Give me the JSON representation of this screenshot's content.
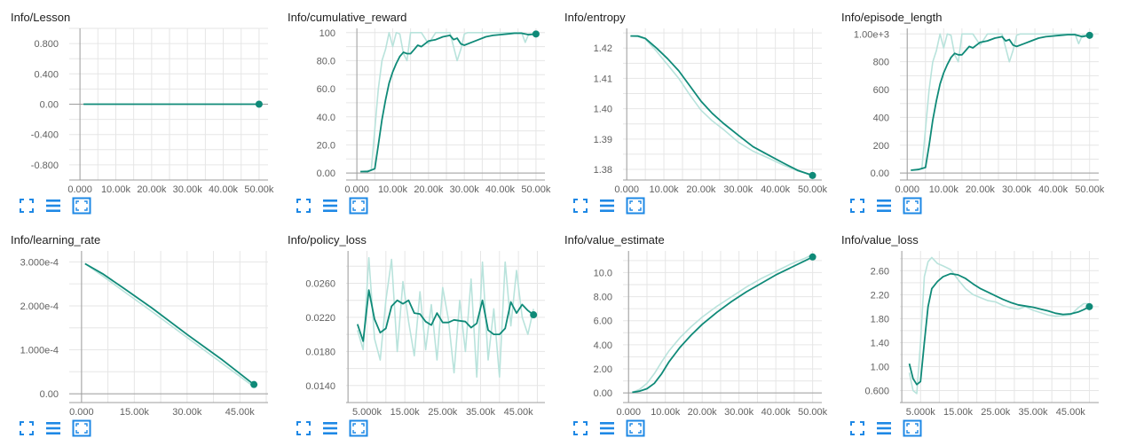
{
  "colors": {
    "series": "#0f8a78",
    "raw": "#b9e3dc",
    "grid": "#e6e6e6",
    "axis": "#9e9e9e",
    "icon": "#1e88e5"
  },
  "icons": [
    "fit-domain-icon",
    "toggle-log-scale-icon",
    "expand-chart-icon"
  ],
  "chart_data": [
    {
      "type": "line",
      "title": "Info/Lesson",
      "xlim": [
        -3000,
        52500
      ],
      "ylim": [
        -1.0,
        1.0
      ],
      "xticks": [
        0,
        10000,
        20000,
        30000,
        40000,
        50000
      ],
      "xtick_labels": [
        "0.000",
        "10.00k",
        "20.00k",
        "30.00k",
        "40.00k",
        "50.00k"
      ],
      "yticks": [
        0.8,
        0.4,
        0.0,
        -0.4,
        -0.8
      ],
      "ytick_labels": [
        "0.800",
        "0.400",
        "0.00",
        "-0.400",
        "-0.800"
      ],
      "x": [
        1000,
        10000,
        20000,
        30000,
        40000,
        50000
      ],
      "y": [
        0,
        0,
        0,
        0,
        0,
        0
      ],
      "raw": []
    },
    {
      "type": "line",
      "title": "Info/cumulative_reward",
      "xlim": [
        -3000,
        52500
      ],
      "ylim": [
        -5,
        103
      ],
      "xticks": [
        0,
        10000,
        20000,
        30000,
        40000,
        50000
      ],
      "xtick_labels": [
        "0.000",
        "10.00k",
        "20.00k",
        "30.00k",
        "40.00k",
        "50.00k"
      ],
      "yticks": [
        100,
        80,
        60,
        40,
        20,
        0
      ],
      "ytick_labels": [
        "100",
        "80.0",
        "60.0",
        "40.0",
        "20.0",
        "0.00"
      ],
      "x": [
        1000,
        3000,
        5000,
        6000,
        7000,
        8000,
        9000,
        10000,
        11000,
        12000,
        13000,
        14000,
        15000,
        16000,
        17000,
        18000,
        19000,
        20000,
        22000,
        24000,
        26000,
        27000,
        28000,
        29000,
        30000,
        32000,
        34000,
        36000,
        38000,
        40000,
        42000,
        44000,
        46000,
        48000,
        50000
      ],
      "y": [
        1,
        1,
        3,
        20,
        38,
        52,
        64,
        72,
        78,
        83,
        86,
        85,
        85,
        88,
        91,
        90,
        92,
        94,
        95,
        97,
        98,
        95,
        96,
        92,
        91,
        93,
        95,
        97,
        98,
        98.5,
        99,
        99.5,
        99.5,
        98.5,
        99
      ],
      "raw_x": [
        1000,
        4000,
        6000,
        7000,
        8000,
        9000,
        10000,
        11000,
        12000,
        13000,
        14000,
        15000,
        16000,
        18000,
        20000,
        22000,
        24000,
        26000,
        28000,
        29000,
        30000,
        31000,
        34000,
        38000,
        42000,
        46000,
        47000,
        48000,
        50000
      ],
      "raw_y": [
        1,
        2,
        60,
        80,
        88,
        100,
        90,
        100,
        99,
        85,
        80,
        100,
        100,
        100,
        92,
        100,
        100,
        100,
        80,
        88,
        99,
        100,
        100,
        100,
        100,
        100,
        93,
        99,
        99
      ]
    },
    {
      "type": "line",
      "title": "Info/entropy",
      "xlim": [
        -1000,
        52500
      ],
      "ylim": [
        1.3765,
        1.4265
      ],
      "xticks": [
        0,
        10000,
        20000,
        30000,
        40000,
        50000
      ],
      "xtick_labels": [
        "0.000",
        "10.00k",
        "20.00k",
        "30.00k",
        "40.00k",
        "50.00k"
      ],
      "yticks": [
        1.42,
        1.41,
        1.4,
        1.39,
        1.38
      ],
      "ytick_labels": [
        "1.42",
        "1.41",
        "1.40",
        "1.39",
        "1.38"
      ],
      "x": [
        1000,
        3000,
        5000,
        8000,
        11000,
        14000,
        17000,
        20000,
        23000,
        26000,
        30000,
        34000,
        38000,
        42000,
        46000,
        50000
      ],
      "y": [
        1.424,
        1.424,
        1.4232,
        1.42,
        1.4165,
        1.4125,
        1.4075,
        1.4025,
        1.3985,
        1.3952,
        1.3913,
        1.3875,
        1.3848,
        1.3822,
        1.3797,
        1.378
      ],
      "raw_x": [
        1000,
        3000,
        5000,
        8000,
        11000,
        14000,
        17000,
        20000,
        23000,
        26000,
        30000,
        34000,
        38000,
        42000,
        46000,
        50000
      ],
      "raw_y": [
        1.424,
        1.4238,
        1.423,
        1.419,
        1.4145,
        1.41,
        1.4045,
        1.3995,
        1.396,
        1.3932,
        1.389,
        1.386,
        1.3838,
        1.3815,
        1.3795,
        1.3782
      ]
    },
    {
      "type": "line",
      "title": "Info/episode_length",
      "xlim": [
        -2000,
        52500
      ],
      "ylim": [
        -50,
        1040
      ],
      "xticks": [
        0,
        10000,
        20000,
        30000,
        40000,
        50000
      ],
      "xtick_labels": [
        "0.000",
        "10.00k",
        "20.00k",
        "30.00k",
        "40.00k",
        "50.00k"
      ],
      "yticks": [
        1000,
        800,
        600,
        400,
        200,
        0
      ],
      "ytick_labels": [
        "1.00e+3",
        "800",
        "600",
        "400",
        "200",
        "0.00"
      ],
      "x": [
        1000,
        3000,
        5000,
        6000,
        7000,
        8000,
        9000,
        10000,
        11000,
        12000,
        13000,
        14000,
        15000,
        16000,
        17000,
        18000,
        19000,
        20000,
        22000,
        24000,
        26000,
        27000,
        28000,
        29000,
        30000,
        32000,
        34000,
        36000,
        38000,
        40000,
        42000,
        44000,
        46000,
        48000,
        50000
      ],
      "y": [
        20,
        25,
        40,
        200,
        380,
        520,
        640,
        720,
        780,
        830,
        860,
        850,
        850,
        880,
        910,
        900,
        920,
        940,
        950,
        970,
        980,
        950,
        960,
        920,
        910,
        930,
        950,
        970,
        980,
        985,
        990,
        995,
        995,
        980,
        990
      ],
      "raw_x": [
        1000,
        4000,
        6000,
        7000,
        8000,
        9000,
        10000,
        11000,
        12000,
        13000,
        14000,
        15000,
        16000,
        18000,
        20000,
        22000,
        24000,
        26000,
        28000,
        29000,
        30000,
        31000,
        34000,
        38000,
        42000,
        46000,
        47000,
        48000,
        50000
      ],
      "raw_y": [
        20,
        30,
        600,
        800,
        880,
        1000,
        900,
        1000,
        990,
        850,
        800,
        1000,
        1000,
        1000,
        920,
        1000,
        1000,
        1000,
        800,
        880,
        990,
        1000,
        1000,
        1000,
        1000,
        1000,
        930,
        990,
        990
      ]
    },
    {
      "type": "line",
      "title": "Info/learning_rate",
      "xlim": [
        -3500,
        53000
      ],
      "ylim": [
        -2e-05,
        0.000325
      ],
      "xticks": [
        0,
        15000,
        30000,
        45000
      ],
      "xtick_labels": [
        "0.000",
        "15.00k",
        "30.00k",
        "45.00k"
      ],
      "yticks": [
        0.0003,
        0.0002,
        0.0001,
        0
      ],
      "ytick_labels": [
        "3.000e-4",
        "2.000e-4",
        "1.000e-4",
        "0.00"
      ],
      "x": [
        1000,
        6000,
        12000,
        20000,
        30000,
        40000,
        49000
      ],
      "y": [
        0.000296,
        0.000273,
        0.00024,
        0.000195,
        0.000135,
        7.7e-05,
        2.1e-05
      ],
      "raw_x": [
        1000,
        6000,
        12000,
        20000,
        30000,
        40000,
        49000
      ],
      "raw_y": [
        0.000296,
        0.000268,
        0.000233,
        0.000187,
        0.000128,
        6.9e-05,
        1.6e-05
      ]
    },
    {
      "type": "line",
      "title": "Info/policy_loss",
      "xlim": [
        -500,
        52000
      ],
      "ylim": [
        0.012,
        0.0298
      ],
      "xticks": [
        5000,
        15000,
        25000,
        35000,
        45000
      ],
      "xtick_labels": [
        "5.000k",
        "15.00k",
        "25.00k",
        "35.00k",
        "45.00k"
      ],
      "yticks": [
        0.026,
        0.022,
        0.018,
        0.014
      ],
      "ytick_labels": [
        "0.0260",
        "0.0220",
        "0.0180",
        "0.0140"
      ],
      "x": [
        2500,
        4000,
        5500,
        7000,
        8500,
        10000,
        11500,
        13000,
        14500,
        16000,
        17500,
        19000,
        20500,
        22000,
        23500,
        25000,
        26500,
        28000,
        29500,
        31000,
        32500,
        34000,
        35500,
        37000,
        38500,
        40000,
        41500,
        43000,
        44500,
        46000,
        47500,
        49000
      ],
      "y": [
        0.0212,
        0.0192,
        0.0252,
        0.0218,
        0.0202,
        0.0207,
        0.0233,
        0.024,
        0.0236,
        0.024,
        0.0225,
        0.0224,
        0.0215,
        0.0211,
        0.0225,
        0.0214,
        0.0214,
        0.0217,
        0.0216,
        0.0215,
        0.0208,
        0.0213,
        0.024,
        0.0205,
        0.02,
        0.02,
        0.0207,
        0.0238,
        0.0225,
        0.0235,
        0.0228,
        0.0223
      ],
      "raw_x": [
        2500,
        4000,
        5500,
        7000,
        8500,
        10000,
        11500,
        13000,
        14500,
        16000,
        17500,
        19000,
        20500,
        22000,
        23500,
        25000,
        26500,
        28000,
        29500,
        31000,
        32500,
        34000,
        35500,
        37000,
        38500,
        40000,
        41500,
        43000,
        44500,
        46000,
        47500,
        49000
      ],
      "raw_y": [
        0.0205,
        0.0182,
        0.029,
        0.0195,
        0.017,
        0.024,
        0.0288,
        0.018,
        0.0262,
        0.0215,
        0.0175,
        0.025,
        0.0182,
        0.0235,
        0.017,
        0.0255,
        0.0218,
        0.0155,
        0.024,
        0.018,
        0.0265,
        0.015,
        0.0285,
        0.017,
        0.023,
        0.015,
        0.0285,
        0.021,
        0.0275,
        0.022,
        0.02,
        0.023
      ]
    },
    {
      "type": "line",
      "title": "Info/value_estimate",
      "xlim": [
        -1500,
        52500
      ],
      "ylim": [
        -0.8,
        11.8
      ],
      "xticks": [
        0,
        10000,
        20000,
        30000,
        40000,
        50000
      ],
      "xtick_labels": [
        "0.000",
        "10.00k",
        "20.00k",
        "30.00k",
        "40.00k",
        "50.00k"
      ],
      "yticks": [
        10,
        8,
        6,
        4,
        2,
        0
      ],
      "ytick_labels": [
        "10.0",
        "8.00",
        "6.00",
        "4.00",
        "2.00",
        "0.00"
      ],
      "x": [
        1000,
        3000,
        5000,
        7000,
        9000,
        11000,
        14000,
        17000,
        20000,
        24000,
        28000,
        32000,
        36000,
        40000,
        44000,
        48000,
        50000
      ],
      "y": [
        0.05,
        0.15,
        0.35,
        0.8,
        1.6,
        2.6,
        3.8,
        4.8,
        5.7,
        6.7,
        7.6,
        8.4,
        9.1,
        9.8,
        10.4,
        11.0,
        11.3
      ],
      "raw_x": [
        1000,
        3000,
        5000,
        7000,
        9000,
        11000,
        14000,
        17000,
        20000,
        24000,
        28000,
        32000,
        36000,
        40000,
        44000,
        48000,
        50000
      ],
      "raw_y": [
        0.05,
        0.3,
        0.8,
        1.6,
        2.6,
        3.5,
        4.6,
        5.5,
        6.3,
        7.2,
        8.0,
        8.8,
        9.5,
        10.1,
        10.7,
        11.2,
        11.5
      ]
    },
    {
      "type": "line",
      "title": "Info/value_loss",
      "xlim": [
        -500,
        52500
      ],
      "ylim": [
        0.4,
        2.93
      ],
      "xticks": [
        5000,
        15000,
        25000,
        35000,
        45000
      ],
      "xtick_labels": [
        "5.000k",
        "15.00k",
        "25.00k",
        "35.00k",
        "45.00k"
      ],
      "yticks": [
        2.6,
        2.2,
        1.8,
        1.4,
        1.0,
        0.6
      ],
      "ytick_labels": [
        "2.60",
        "2.20",
        "1.80",
        "1.40",
        "1.00",
        "0.600"
      ],
      "x": [
        2000,
        3000,
        4000,
        5000,
        6000,
        7000,
        8000,
        9500,
        11000,
        13000,
        15000,
        17000,
        19000,
        21000,
        23000,
        25000,
        27000,
        29000,
        31000,
        33000,
        35000,
        37000,
        39000,
        41000,
        43000,
        45000,
        47000,
        48500,
        50000
      ],
      "y": [
        1.05,
        0.8,
        0.7,
        0.75,
        1.4,
        2.0,
        2.3,
        2.42,
        2.5,
        2.55,
        2.53,
        2.47,
        2.38,
        2.3,
        2.24,
        2.18,
        2.12,
        2.07,
        2.03,
        2.01,
        1.99,
        1.96,
        1.93,
        1.89,
        1.87,
        1.88,
        1.91,
        1.95,
        2.0
      ],
      "raw_x": [
        2000,
        3000,
        4000,
        5000,
        6000,
        7000,
        8000,
        9500,
        11000,
        13000,
        15000,
        17000,
        19000,
        21000,
        23000,
        25000,
        27000,
        29000,
        31000,
        33000,
        35000,
        37000,
        39000,
        41000,
        43000,
        45000,
        47000,
        48500,
        50000
      ],
      "raw_y": [
        0.9,
        0.6,
        0.55,
        1.4,
        2.5,
        2.75,
        2.82,
        2.72,
        2.68,
        2.62,
        2.45,
        2.3,
        2.2,
        2.15,
        2.1,
        2.08,
        2.02,
        1.98,
        1.96,
        2.0,
        1.94,
        1.9,
        1.86,
        1.84,
        1.85,
        1.86,
        1.98,
        2.05,
        2.05
      ]
    }
  ]
}
